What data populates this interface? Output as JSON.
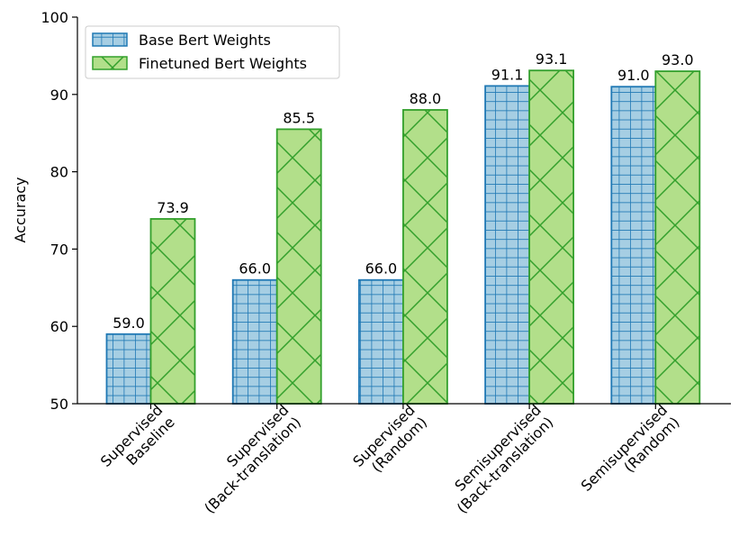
{
  "chart_data": {
    "type": "bar",
    "title": "",
    "xlabel": "",
    "ylabel": "Accuracy",
    "ylim": [
      50,
      100
    ],
    "yticks": [
      50,
      60,
      70,
      80,
      90,
      100
    ],
    "categories": [
      [
        "Supervised",
        "Baseline"
      ],
      [
        "Supervised",
        "(Back-translation)"
      ],
      [
        "Supervised",
        "(Random)"
      ],
      [
        "Semisupervised",
        "(Back-translation)"
      ],
      [
        "Semisupervised",
        "(Random)"
      ]
    ],
    "series": [
      {
        "name": "Base Bert Weights",
        "values": [
          59.0,
          66.0,
          66.0,
          91.1,
          91.0
        ],
        "labels": [
          "59.0",
          "66.0",
          "66.0",
          "91.1",
          "91.0"
        ],
        "fill": "#a6cee3",
        "stroke": "#1f78b4",
        "hatch": "grid"
      },
      {
        "name": "Finetuned Bert Weights",
        "values": [
          73.9,
          85.5,
          88.0,
          93.1,
          93.0
        ],
        "labels": [
          "73.9",
          "85.5",
          "88.0",
          "93.1",
          "93.0"
        ],
        "fill": "#b2df8a",
        "stroke": "#33a02c",
        "hatch": "cross"
      }
    ],
    "legend_position": "top-left",
    "grid": false
  }
}
